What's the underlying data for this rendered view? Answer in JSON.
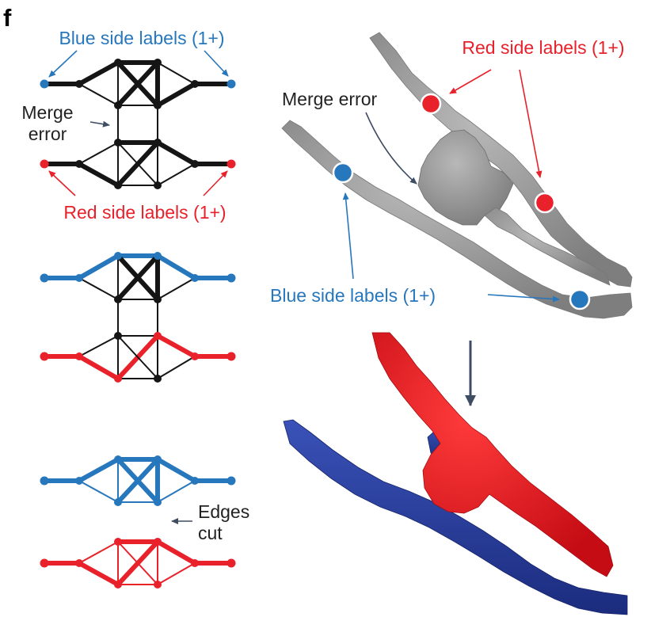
{
  "panel_letter": "f",
  "graph_labels": {
    "blue_side": "Blue side labels (1+)",
    "merge_error_line1": "Merge",
    "merge_error_line2": "error",
    "red_side": "Red side labels (1+)",
    "edges_cut_line1": "Edges",
    "edges_cut_line2": "cut"
  },
  "mesh_labels": {
    "merge_error": "Merge error",
    "red_side": "Red side labels (1+)",
    "blue_side": "Blue side labels (1+)"
  },
  "colors": {
    "blue": "#2777bd",
    "red": "#e8212b",
    "black": "#151515",
    "arrow": "#3f4d63",
    "mesh_gray": "#9a9a9a",
    "seg_blue": "#263d9a",
    "seg_red": "#e4161f"
  }
}
